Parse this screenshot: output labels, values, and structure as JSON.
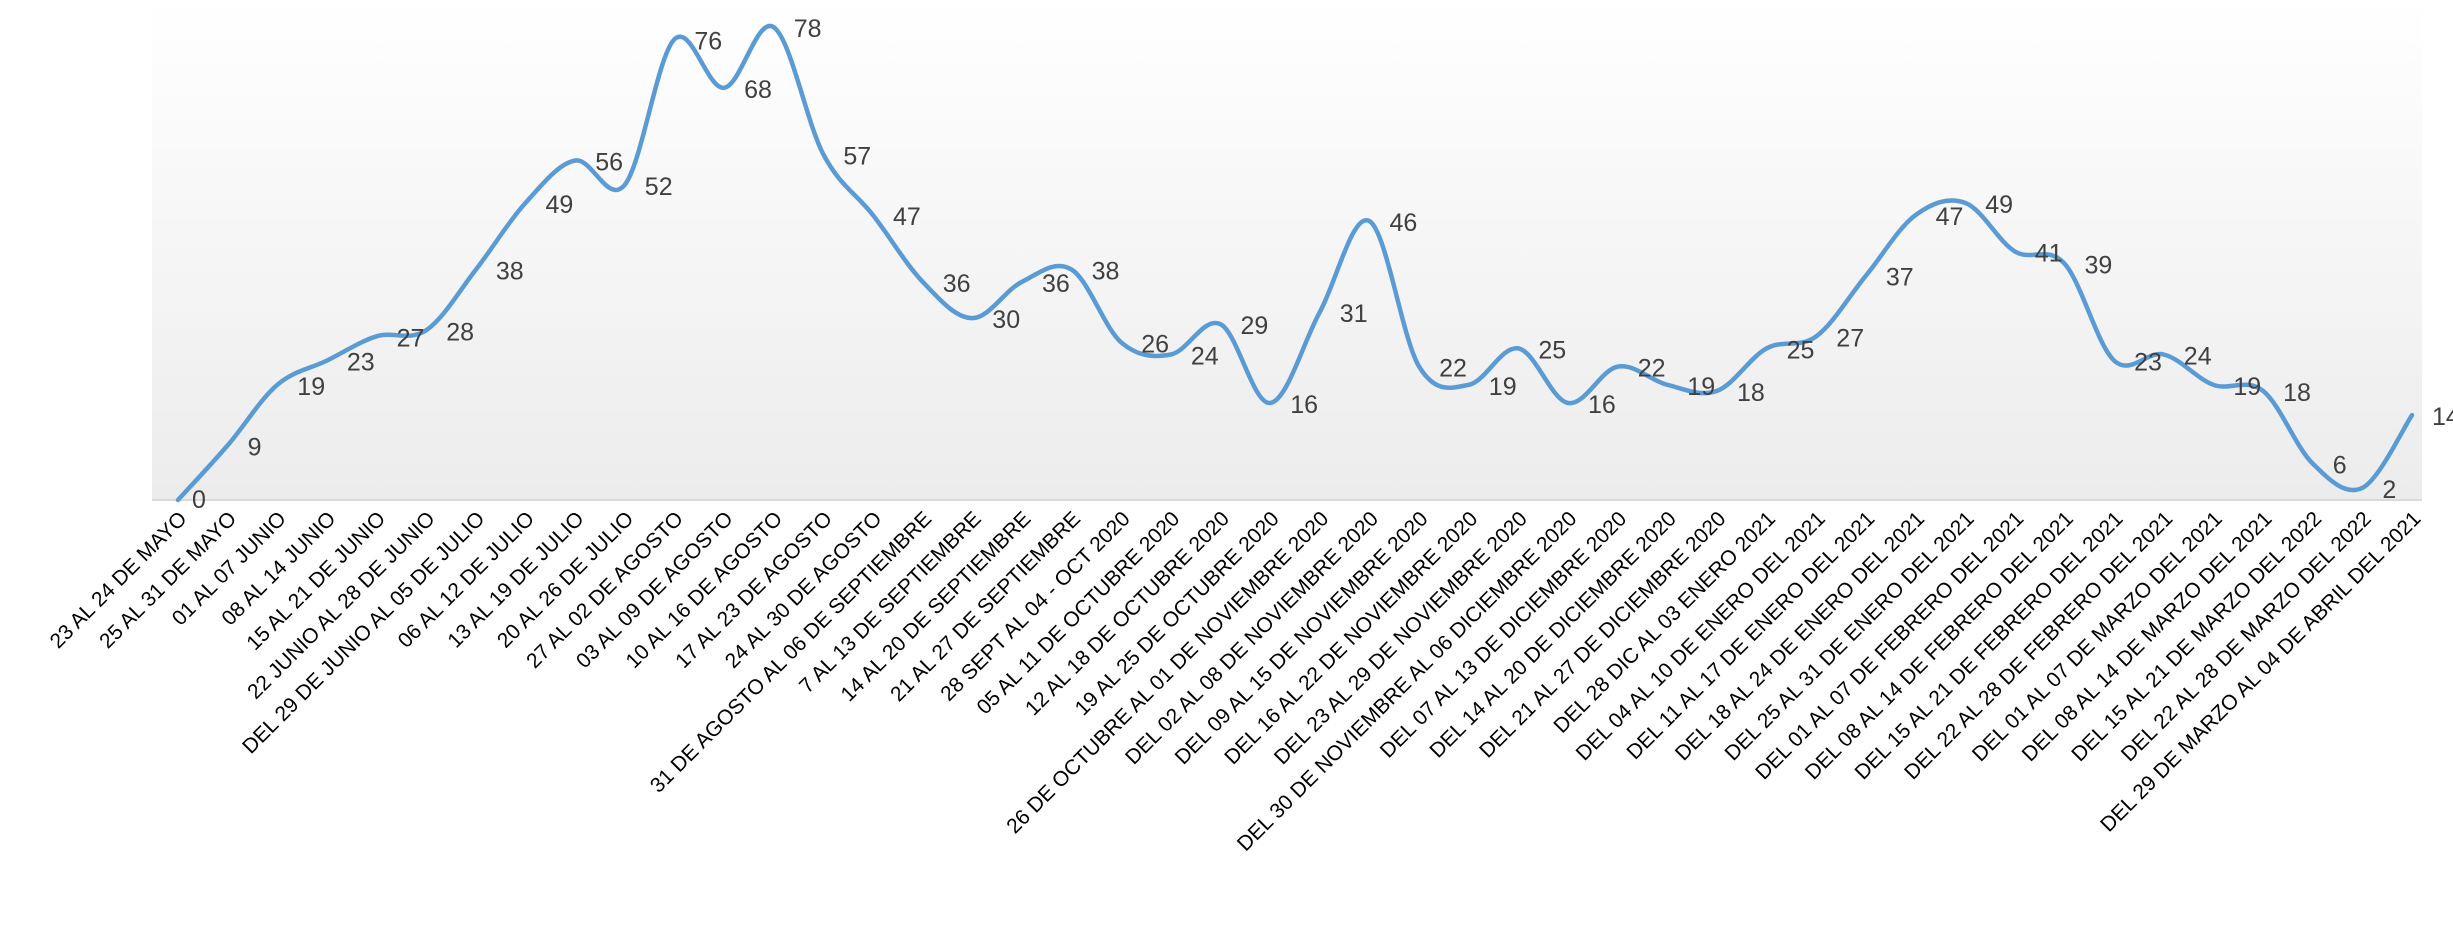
{
  "chart_data": {
    "type": "line",
    "title": "",
    "xlabel": "",
    "ylabel": "",
    "ylim": [
      0,
      80
    ],
    "smooth": true,
    "grid": false,
    "legend": "none",
    "line_color": "#5b9bd5",
    "label_color": "#404040",
    "tick_color": "#000000",
    "background": "gradient from #ffffff at top to #ececec at the baseline",
    "categories": [
      "23 AL 24 DE MAYO",
      "25 AL 31 DE MAYO",
      "01 AL 07 JUNIO",
      "08 AL 14 JUNIO",
      "15 AL 21 DE JUNIO",
      "22 JUNIO AL 28 DE JUNIO",
      "DEL 29 DE JUNIO AL 05 DE JULIO",
      "06 AL 12 DE JULIO",
      "13 AL 19 DE JULIO",
      "20 AL 26 DE JULIO",
      "27 AL 02 DE AGOSTO",
      "03 AL 09 DE AGOSTO",
      "10 AL 16 DE AGOSTO",
      "17 AL 23 DE AGOSTO",
      "24 AL 30 DE AGOSTO",
      "31 DE AGOSTO AL 06 DE SEPTIEMBRE",
      "7 AL 13 DE SEPTIEMBRE",
      "14 AL 20 DE SEPTIEMBRE",
      "21 AL 27 DE SEPTIEMBRE",
      "28 SEPT AL 04 - OCT 2020",
      "05 AL 11 DE OCTUBRE 2020",
      "12 AL 18 DE OCTUBRE 2020",
      "19 AL 25 DE OCTUBRE 2020",
      "26 DE OCTUBRE AL 01 DE NOVIEMBRE 2020",
      "DEL 02 AL 08 DE NOVIEMBRE 2020",
      "DEL 09 AL 15 DE NOVIEMBRE 2020",
      "DEL 16 AL 22 DE NOVIEMBRE 2020",
      "DEL 23 AL 29 DE NOVIEMBRE 2020",
      "DEL 30 DE NOVIEMBRE AL 06 DICIEMBRE 2020",
      "DEL 07 AL 13 DE DICIEMBRE 2020",
      "DEL 14 AL 20 DE DICIEMBRE 2020",
      "DEL 21 AL 27 DE DICIEMBRE 2020",
      "DEL 28 DIC AL 03 ENERO 2021",
      "DEL 04 AL 10 DE ENERO DEL 2021",
      "DEL 11 AL 17 DE ENERO DEL 2021",
      "DEL 18 AL 24 DE ENERO DEL 2021",
      "DEL 25 AL 31 DE ENERO DEL 2021",
      "DEL 01 AL 07 DE FEBRERO DEL 2021",
      "DEL 08 AL 14 DE FEBRERO DEL 2021",
      "DEL 15 AL 21 DE FEBRERO DEL 2021",
      "DEL 22 AL 28 DE FEBRERO DEL 2021",
      "DEL 01 AL 07 DE MARZO DEL 2021",
      "DEL 08 AL 14 DE MARZO DEL 2021",
      "DEL 15 AL 21 DE MARZO DEL 2022",
      "DEL 22 AL 28 DE MARZO DEL 2022",
      "DEL 29 DE MARZO AL 04 DE ABRIL DEL 2021"
    ],
    "values": [
      0,
      9,
      19,
      23,
      27,
      28,
      38,
      49,
      56,
      52,
      76,
      68,
      78,
      57,
      47,
      36,
      30,
      36,
      38,
      26,
      24,
      29,
      16,
      31,
      46,
      22,
      19,
      25,
      16,
      22,
      19,
      18,
      25,
      27,
      37,
      47,
      49,
      41,
      39,
      23,
      24,
      19,
      18,
      6,
      2,
      14
    ]
  }
}
